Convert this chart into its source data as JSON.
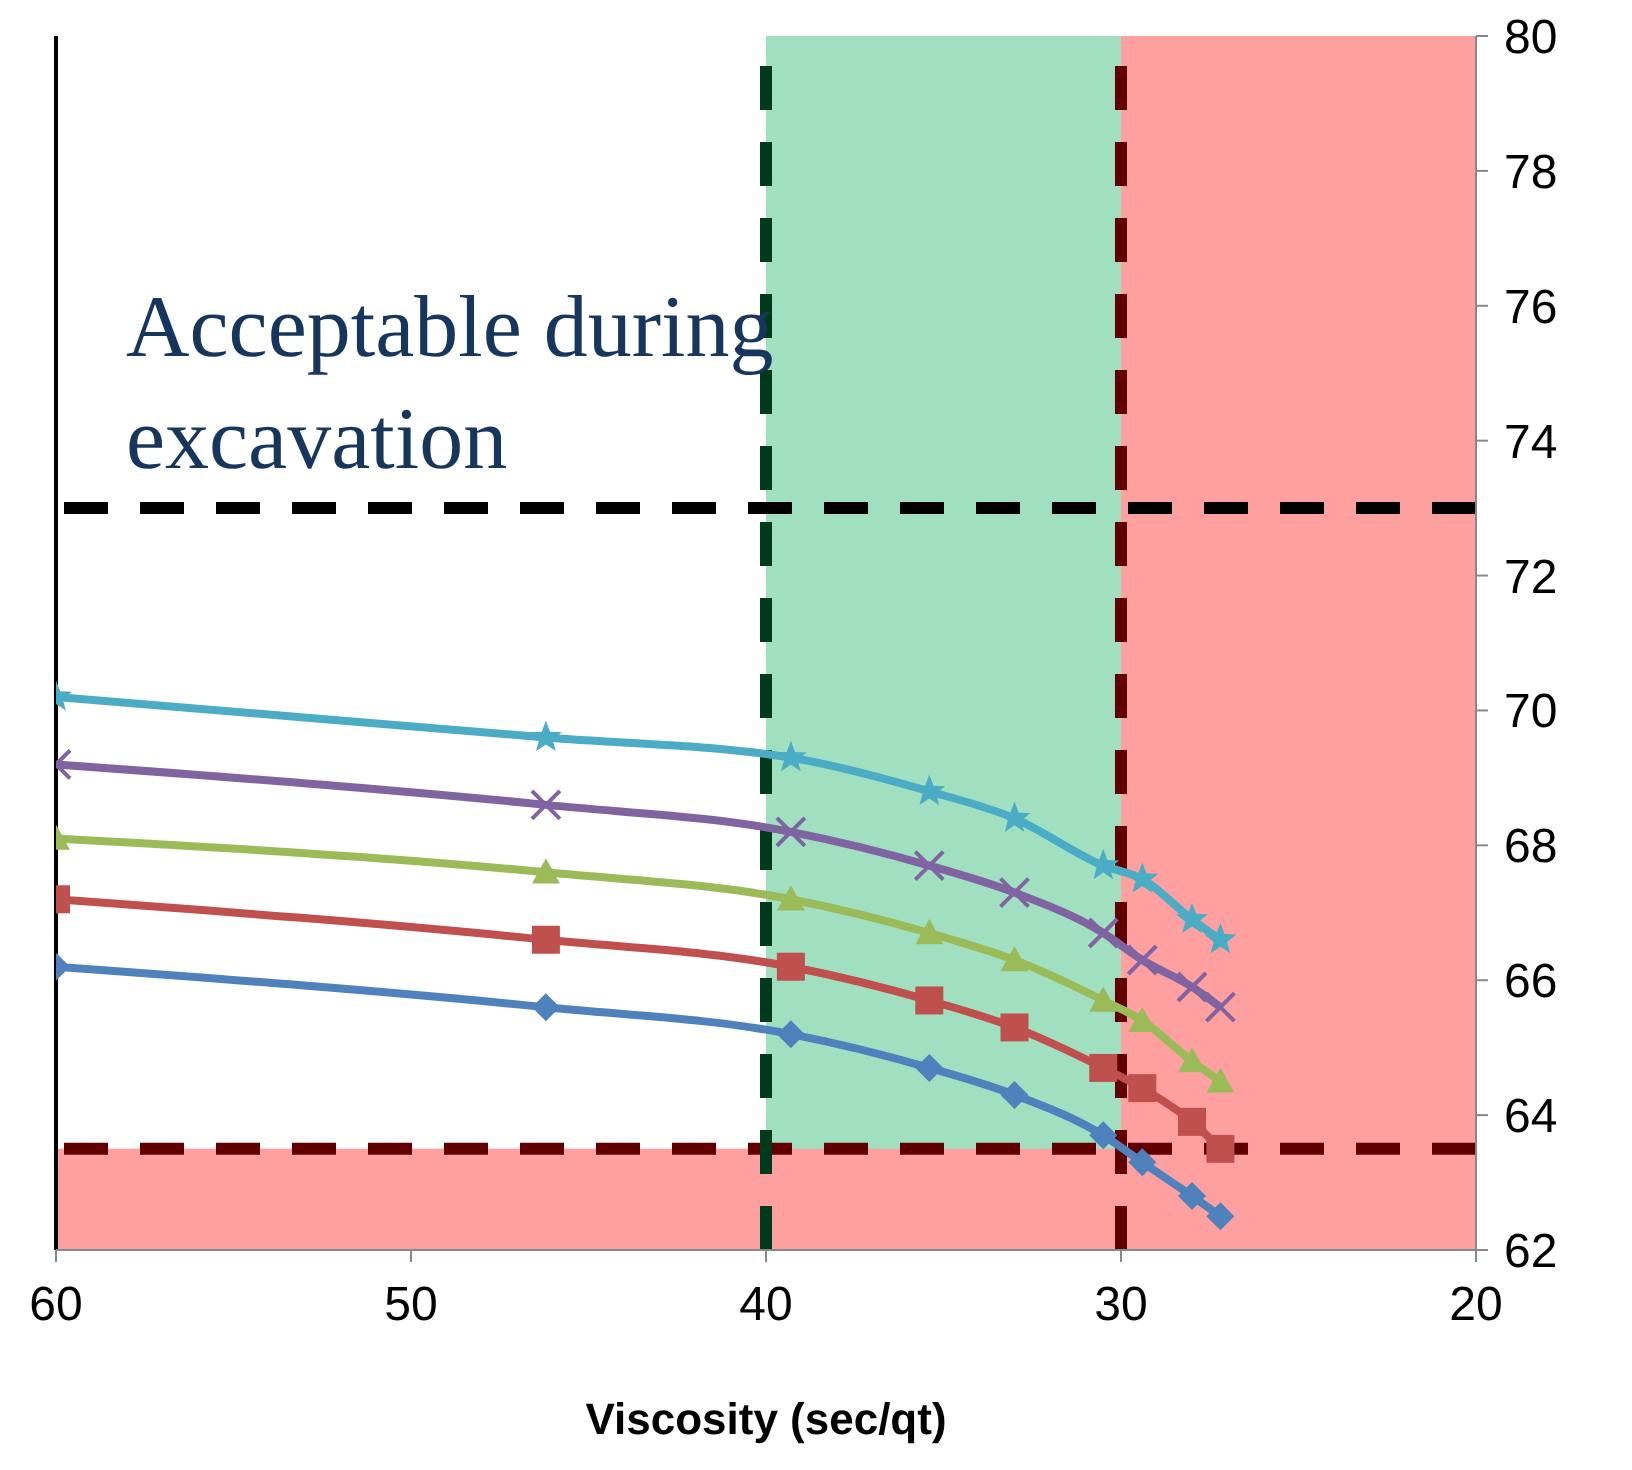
{
  "chart_data": {
    "type": "line",
    "xlabel": "Viscosity (sec/qt)",
    "x": [
      60,
      46.2,
      39.3,
      35.4,
      33,
      30.5,
      29.4,
      28,
      27.2
    ],
    "series": [
      {
        "color": "#4bacc6",
        "marker": "star",
        "values": [
          70.2,
          69.6,
          69.3,
          68.8,
          68.4,
          67.7,
          67.5,
          66.9,
          66.6
        ]
      },
      {
        "color": "#8064a2",
        "marker": "cross",
        "values": [
          69.2,
          68.6,
          68.2,
          67.7,
          67.3,
          66.7,
          66.3,
          65.9,
          65.6
        ]
      },
      {
        "color": "#9bbb59",
        "marker": "triangle",
        "values": [
          68.1,
          67.6,
          67.2,
          66.7,
          66.3,
          65.7,
          65.4,
          64.8,
          64.5
        ]
      },
      {
        "color": "#c0504d",
        "marker": "square",
        "values": [
          67.2,
          66.6,
          66.2,
          65.7,
          65.3,
          64.7,
          64.4,
          63.9,
          63.5
        ]
      },
      {
        "color": "#4f81bd",
        "marker": "diamond",
        "values": [
          66.2,
          65.6,
          65.2,
          64.7,
          64.3,
          63.7,
          63.3,
          62.8,
          62.5
        ]
      }
    ],
    "xlim": [
      60,
      20
    ],
    "xticks": [
      60,
      50,
      40,
      30,
      20
    ],
    "ylim": [
      62,
      80
    ],
    "yticks": [
      62,
      64,
      66,
      68,
      70,
      72,
      74,
      76,
      78,
      80
    ],
    "bands": [
      {
        "axis": "x",
        "from": 40,
        "to": 30,
        "color": "#a0e0c0"
      },
      {
        "axis": "x",
        "from": 30,
        "to": 20,
        "color": "#ffa0a0"
      },
      {
        "axis": "y",
        "from": 62,
        "to": 63.5,
        "color": "#ffa0a0"
      }
    ],
    "ref_lines": [
      {
        "axis": "y",
        "value": 73,
        "color": "#000000",
        "line_style": "dashed"
      },
      {
        "axis": "y",
        "value": 63.5,
        "color": "#600000",
        "line_style": "dashed"
      },
      {
        "axis": "x",
        "value": 40,
        "color": "#003a1a",
        "line_style": "dashed"
      },
      {
        "axis": "x",
        "value": 30,
        "color": "#600000",
        "line_style": "dashed"
      }
    ],
    "annotations": [
      "Acceptable during excavation"
    ],
    "grid": false,
    "legend": false
  }
}
